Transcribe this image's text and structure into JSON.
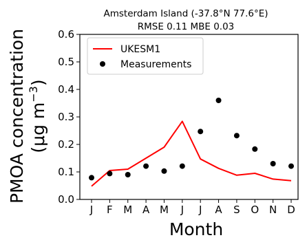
{
  "chart_data": {
    "type": "line",
    "title": "Amsterdam Island (-37.8°N 77.6°E)",
    "subtitle": "RMSE 0.11  MBE 0.03",
    "xlabel": "Month",
    "ylabel_main": "PMOA concentration",
    "ylabel_unit_prefix": "(μg m",
    "ylabel_unit_exp": "−3",
    "ylabel_unit_suffix": ")",
    "categories": [
      "J",
      "F",
      "M",
      "A",
      "M",
      "J",
      "J",
      "A",
      "S",
      "O",
      "N",
      "D"
    ],
    "ylim": [
      0,
      0.6
    ],
    "yticks": [
      "0.0",
      "0.1",
      "0.2",
      "0.3",
      "0.4",
      "0.5",
      "0.6"
    ],
    "legend_position": "top-left",
    "grid": false,
    "series": [
      {
        "name": "UKESM1",
        "kind": "line",
        "color": "#ff0000",
        "values": [
          0.048,
          0.105,
          0.11,
          0.15,
          0.19,
          0.284,
          0.147,
          0.113,
          0.088,
          0.095,
          0.074,
          0.068
        ]
      },
      {
        "name": "Measurements",
        "kind": "scatter",
        "color": "#000000",
        "values": [
          0.079,
          0.094,
          0.09,
          0.121,
          0.103,
          0.121,
          0.247,
          0.36,
          0.232,
          0.183,
          0.13,
          0.121
        ]
      }
    ]
  }
}
